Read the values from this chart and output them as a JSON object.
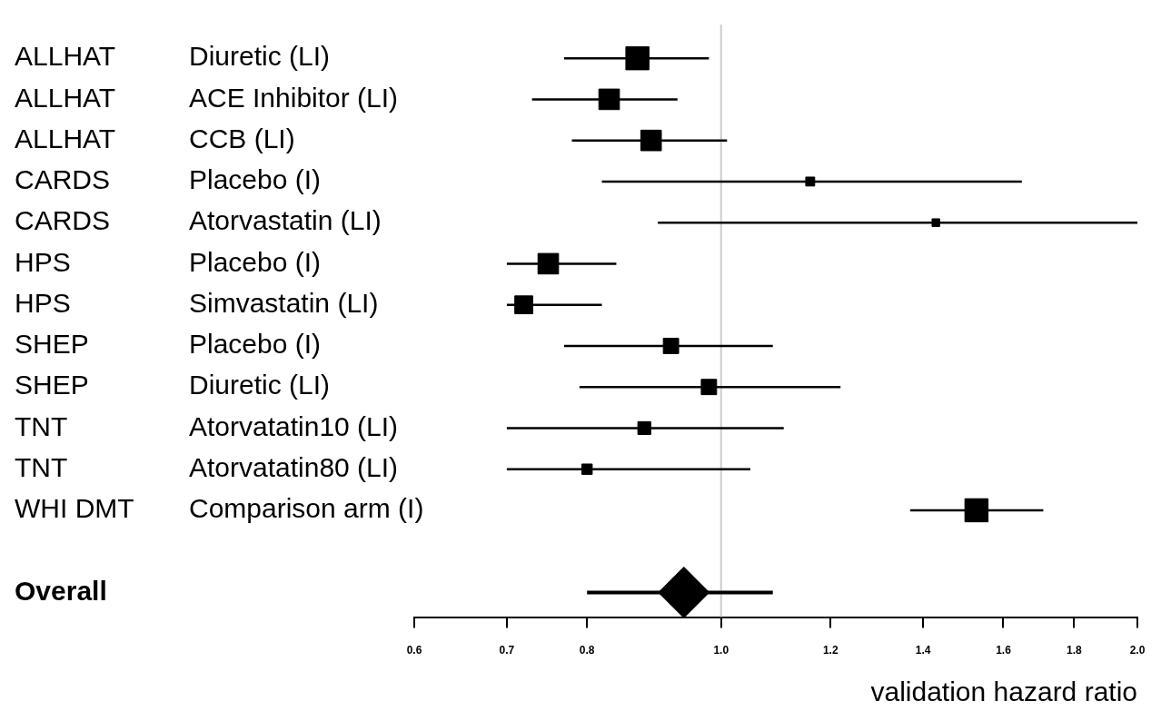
{
  "chart_data": {
    "type": "scatter",
    "orientation": "horizontal",
    "y_categories": [
      "ALLHAT",
      "ALLHAT",
      "ALLHAT",
      "CARDS",
      "CARDS",
      "HPS",
      "HPS",
      "SHEP",
      "SHEP",
      "TNT",
      "TNT",
      "WHI DMT",
      null,
      "Overall"
    ],
    "categories": [
      "Diuretic (LI)",
      "ACE Inhibitor (LI)",
      "CCB (LI)",
      "Placebo (I)",
      "Atorvastatin (LI)",
      "Placebo (I)",
      "Simvastatin (LI)",
      "Placebo (I)",
      "Diuretic (LI)",
      "Atorvatatin10 (LI)",
      "Atorvatatin80 (LI)",
      "Comparison arm (I)",
      null,
      null
    ],
    "series": [
      {
        "color": "#000000",
        "marker": "square",
        "values": [
          0.87,
          0.83,
          0.89,
          1.16,
          1.43,
          0.75,
          0.72,
          0.92,
          0.98,
          0.88,
          0.8,
          1.53,
          null,
          null
        ],
        "errors": [
          [
            0.77,
            0.98
          ],
          [
            0.73,
            0.93
          ],
          [
            0.78,
            1.01
          ],
          [
            0.82,
            1.65
          ],
          [
            0.9,
            2.0
          ],
          [
            0.7,
            0.84
          ],
          [
            0.7,
            0.82
          ],
          [
            0.77,
            1.09
          ],
          [
            0.79,
            1.22
          ],
          [
            0.7,
            1.11
          ],
          [
            0.7,
            1.05
          ],
          [
            1.37,
            1.71
          ],
          null,
          null
        ],
        "sizes": [
          1,
          0.79,
          0.79,
          0.15,
          0.11,
          0.79,
          0.6,
          0.44,
          0.44,
          0.31,
          0.2,
          1,
          null,
          null
        ]
      },
      {
        "color": "#000000",
        "marker": "diamond",
        "values": [
          null,
          null,
          null,
          null,
          null,
          null,
          null,
          null,
          null,
          null,
          null,
          null,
          null,
          0.94
        ],
        "errors": [
          null,
          null,
          null,
          null,
          null,
          null,
          null,
          null,
          null,
          null,
          null,
          null,
          null,
          [
            0.8,
            1.09
          ]
        ]
      }
    ],
    "log": "x",
    "xlim": [
      0.6,
      2.0
    ],
    "xticks": [
      0.6,
      0.7,
      0.8,
      {
        "value": 1,
        "label": "1.0"
      },
      1.2,
      1.4,
      1.6,
      1.8,
      {
        "value": 2,
        "label": "2.0"
      }
    ],
    "xlabel": "validation hazard ratio",
    "ref_lines": [
      {
        "axis": "x",
        "value": 1,
        "color": "#cccccc"
      }
    ],
    "grid": false,
    "legend": false
  }
}
